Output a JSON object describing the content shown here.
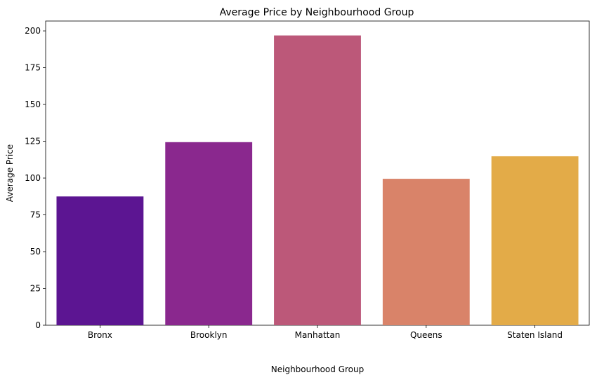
{
  "chart_data": {
    "type": "bar",
    "title": "Average Price by Neighbourhood Group",
    "xlabel": "Neighbourhood Group",
    "ylabel": "Average Price",
    "categories": [
      "Bronx",
      "Brooklyn",
      "Manhattan",
      "Queens",
      "Staten Island"
    ],
    "values": [
      87.5,
      124.4,
      196.9,
      99.5,
      114.8
    ],
    "colors": [
      "#5c1592",
      "#8a288e",
      "#bc5879",
      "#d98369",
      "#e3ab48"
    ],
    "ylim": [
      0,
      206.7
    ],
    "yticks": [
      0,
      25,
      50,
      75,
      100,
      125,
      150,
      175,
      200
    ],
    "grid": false,
    "legend": "none"
  }
}
